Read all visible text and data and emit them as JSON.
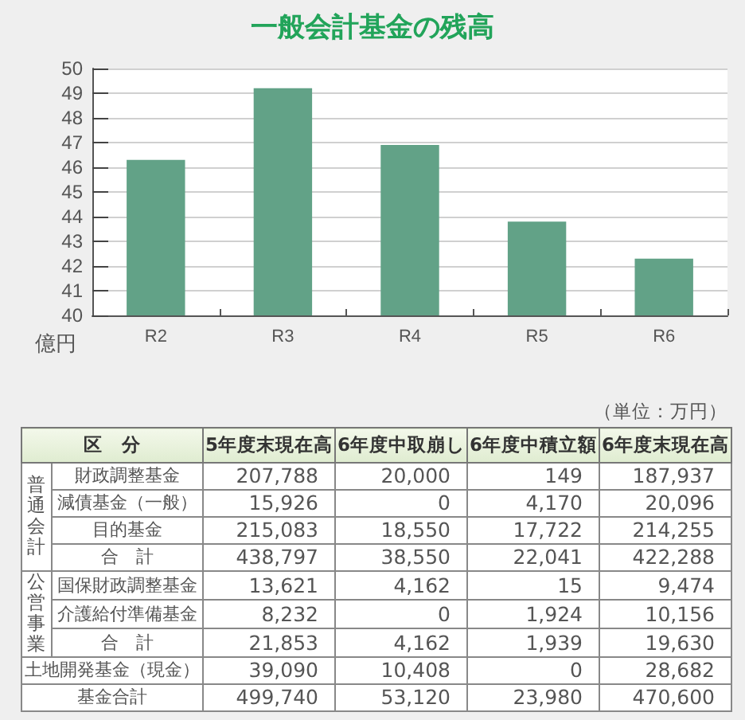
{
  "chart_data": [
    {
      "type": "bar",
      "title": "一般会計基金の残高",
      "ylabel": "億円",
      "categories": [
        "R2",
        "R3",
        "R4",
        "R5",
        "R6"
      ],
      "values": [
        46.3,
        49.2,
        46.9,
        43.8,
        42.3
      ],
      "color": "#62a287",
      "ylim": [
        40,
        50
      ],
      "yticks": [
        40,
        41,
        42,
        43,
        44,
        45,
        46,
        47,
        48,
        49,
        50
      ],
      "grid": "y"
    },
    {
      "type": "other",
      "annotations": [
        "（単位：万円）"
      ],
      "categories": [
        "区　分",
        "5年度末現在高",
        "6年度中取崩し",
        "6年度中積立額",
        "6年度末現在高"
      ],
      "y2_categories": [
        "普通会計",
        null,
        null,
        null,
        "公営事業",
        null,
        null,
        "土地開発基金（現金）",
        "基金合計"
      ],
      "y_categories": [
        "財政調整基金",
        "減債基金（一般）",
        "目的基金",
        "合　計",
        "国保財政調整基金",
        "介護給付準備基金",
        "合　計",
        null,
        null
      ],
      "cell_labels": [
        [
          "207,788",
          "20,000",
          "149",
          "187,937"
        ],
        [
          "15,926",
          "0",
          "4,170",
          "20,096"
        ],
        [
          "215,083",
          "18,550",
          "17,722",
          "214,255"
        ],
        [
          "438,797",
          "38,550",
          "22,041",
          "422,288"
        ],
        [
          "13,621",
          "4,162",
          "15",
          "9,474"
        ],
        [
          "8,232",
          "0",
          "1,924",
          "10,156"
        ],
        [
          "21,853",
          "4,162",
          "1,939",
          "19,630"
        ],
        [
          "39,090",
          "10,408",
          "0",
          "28,682"
        ],
        [
          "499,740",
          "53,120",
          "23,980",
          "470,600"
        ]
      ]
    }
  ]
}
